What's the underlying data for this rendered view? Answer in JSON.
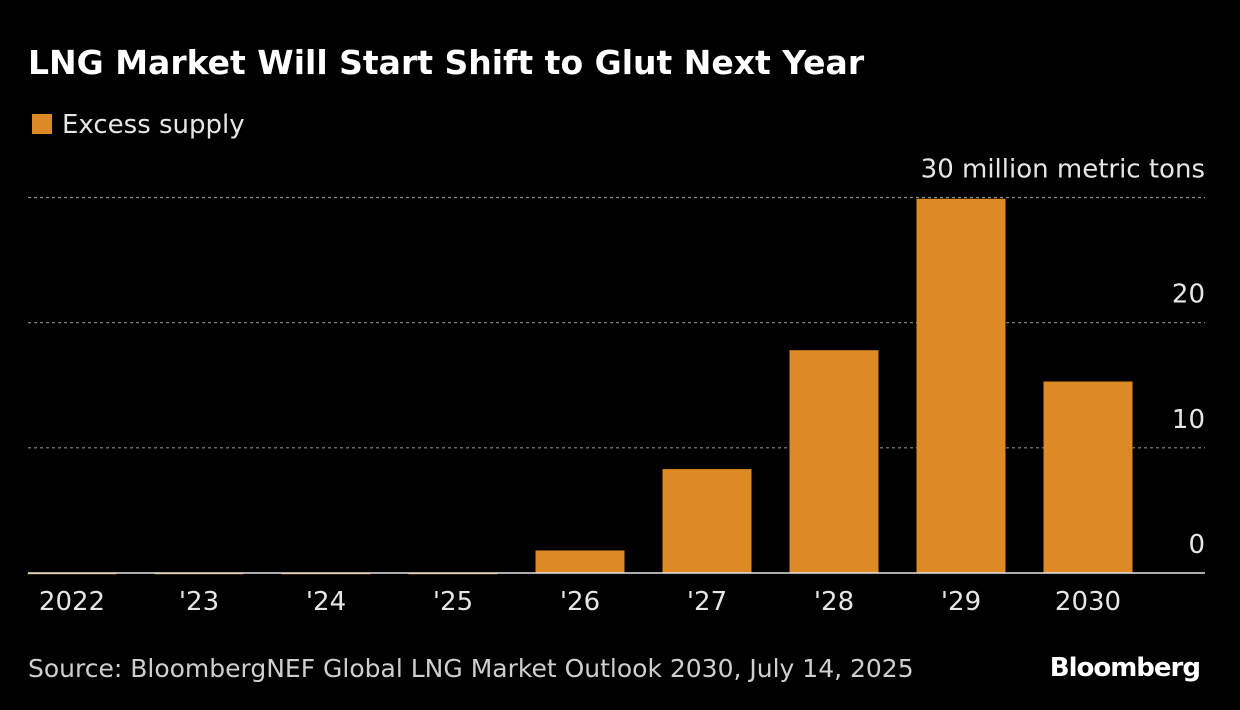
{
  "chart_data": {
    "type": "bar",
    "title": "LNG Market Will Start Shift to Glut Next Year",
    "categories": [
      "2022",
      "'23",
      "'24",
      "'25",
      "'26",
      "'27",
      "'28",
      "'29",
      "2030"
    ],
    "series": [
      {
        "name": "Excess supply",
        "color": "#dd8a24",
        "values": [
          -0.1,
          -0.1,
          -0.1,
          -0.1,
          1.8,
          8.3,
          17.8,
          29.9,
          15.3
        ]
      }
    ],
    "ylim": [
      0,
      30
    ],
    "yticks": [
      0,
      10,
      20,
      {
        "value": 30,
        "label": "30 million metric tons"
      }
    ],
    "grid": true,
    "source": "Source: BloombergNEF Global LNG Market Outlook 2030, July 14, 2025",
    "brand": "Bloomberg"
  }
}
